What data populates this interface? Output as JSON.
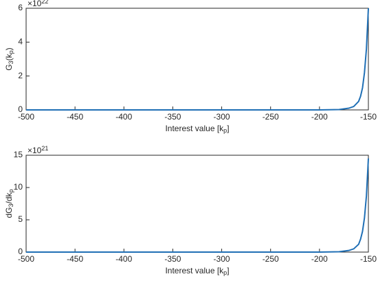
{
  "chart_data": [
    {
      "type": "line",
      "xlabel": {
        "parts": [
          "Interest value [k",
          "p",
          "]"
        ]
      },
      "ylabel": {
        "parts": [
          "G",
          "3",
          "(k",
          "p",
          ")"
        ]
      },
      "exponent_label": {
        "parts": [
          "×10",
          "22"
        ]
      },
      "x": [
        -500,
        -200,
        -180,
        -170,
        -165,
        -160,
        -158,
        -156,
        -154,
        -152,
        -150
      ],
      "series": [
        {
          "color": "#1f6fb5",
          "values": [
            0,
            0,
            0.02,
            0.1,
            0.2,
            0.5,
            0.8,
            1.3,
            2.2,
            3.6,
            6
          ]
        }
      ],
      "xlim": [
        -500,
        -150
      ],
      "xticks": [
        -500,
        -450,
        -400,
        -350,
        -300,
        -250,
        -200,
        -150
      ],
      "ylim": [
        0,
        6
      ],
      "yticks": [
        0,
        2,
        4,
        6
      ]
    },
    {
      "type": "line",
      "xlabel": {
        "parts": [
          "Interest value [k",
          "p",
          "]"
        ]
      },
      "ylabel": {
        "parts": [
          "dG",
          "3",
          "/dk",
          "p",
          ""
        ]
      },
      "exponent_label": {
        "parts": [
          "×10",
          "21"
        ]
      },
      "x": [
        -500,
        -200,
        -180,
        -170,
        -165,
        -160,
        -158,
        -156,
        -154,
        -152,
        -150
      ],
      "series": [
        {
          "color": "#1f6fb5",
          "values": [
            0,
            0,
            0.05,
            0.25,
            0.5,
            1.2,
            2,
            3.2,
            5.3,
            8.7,
            14.5
          ]
        }
      ],
      "xlim": [
        -500,
        -150
      ],
      "xticks": [
        -500,
        -450,
        -400,
        -350,
        -300,
        -250,
        -200,
        -150
      ],
      "ylim": [
        0,
        15
      ],
      "yticks": [
        0,
        5,
        10,
        15
      ]
    }
  ]
}
